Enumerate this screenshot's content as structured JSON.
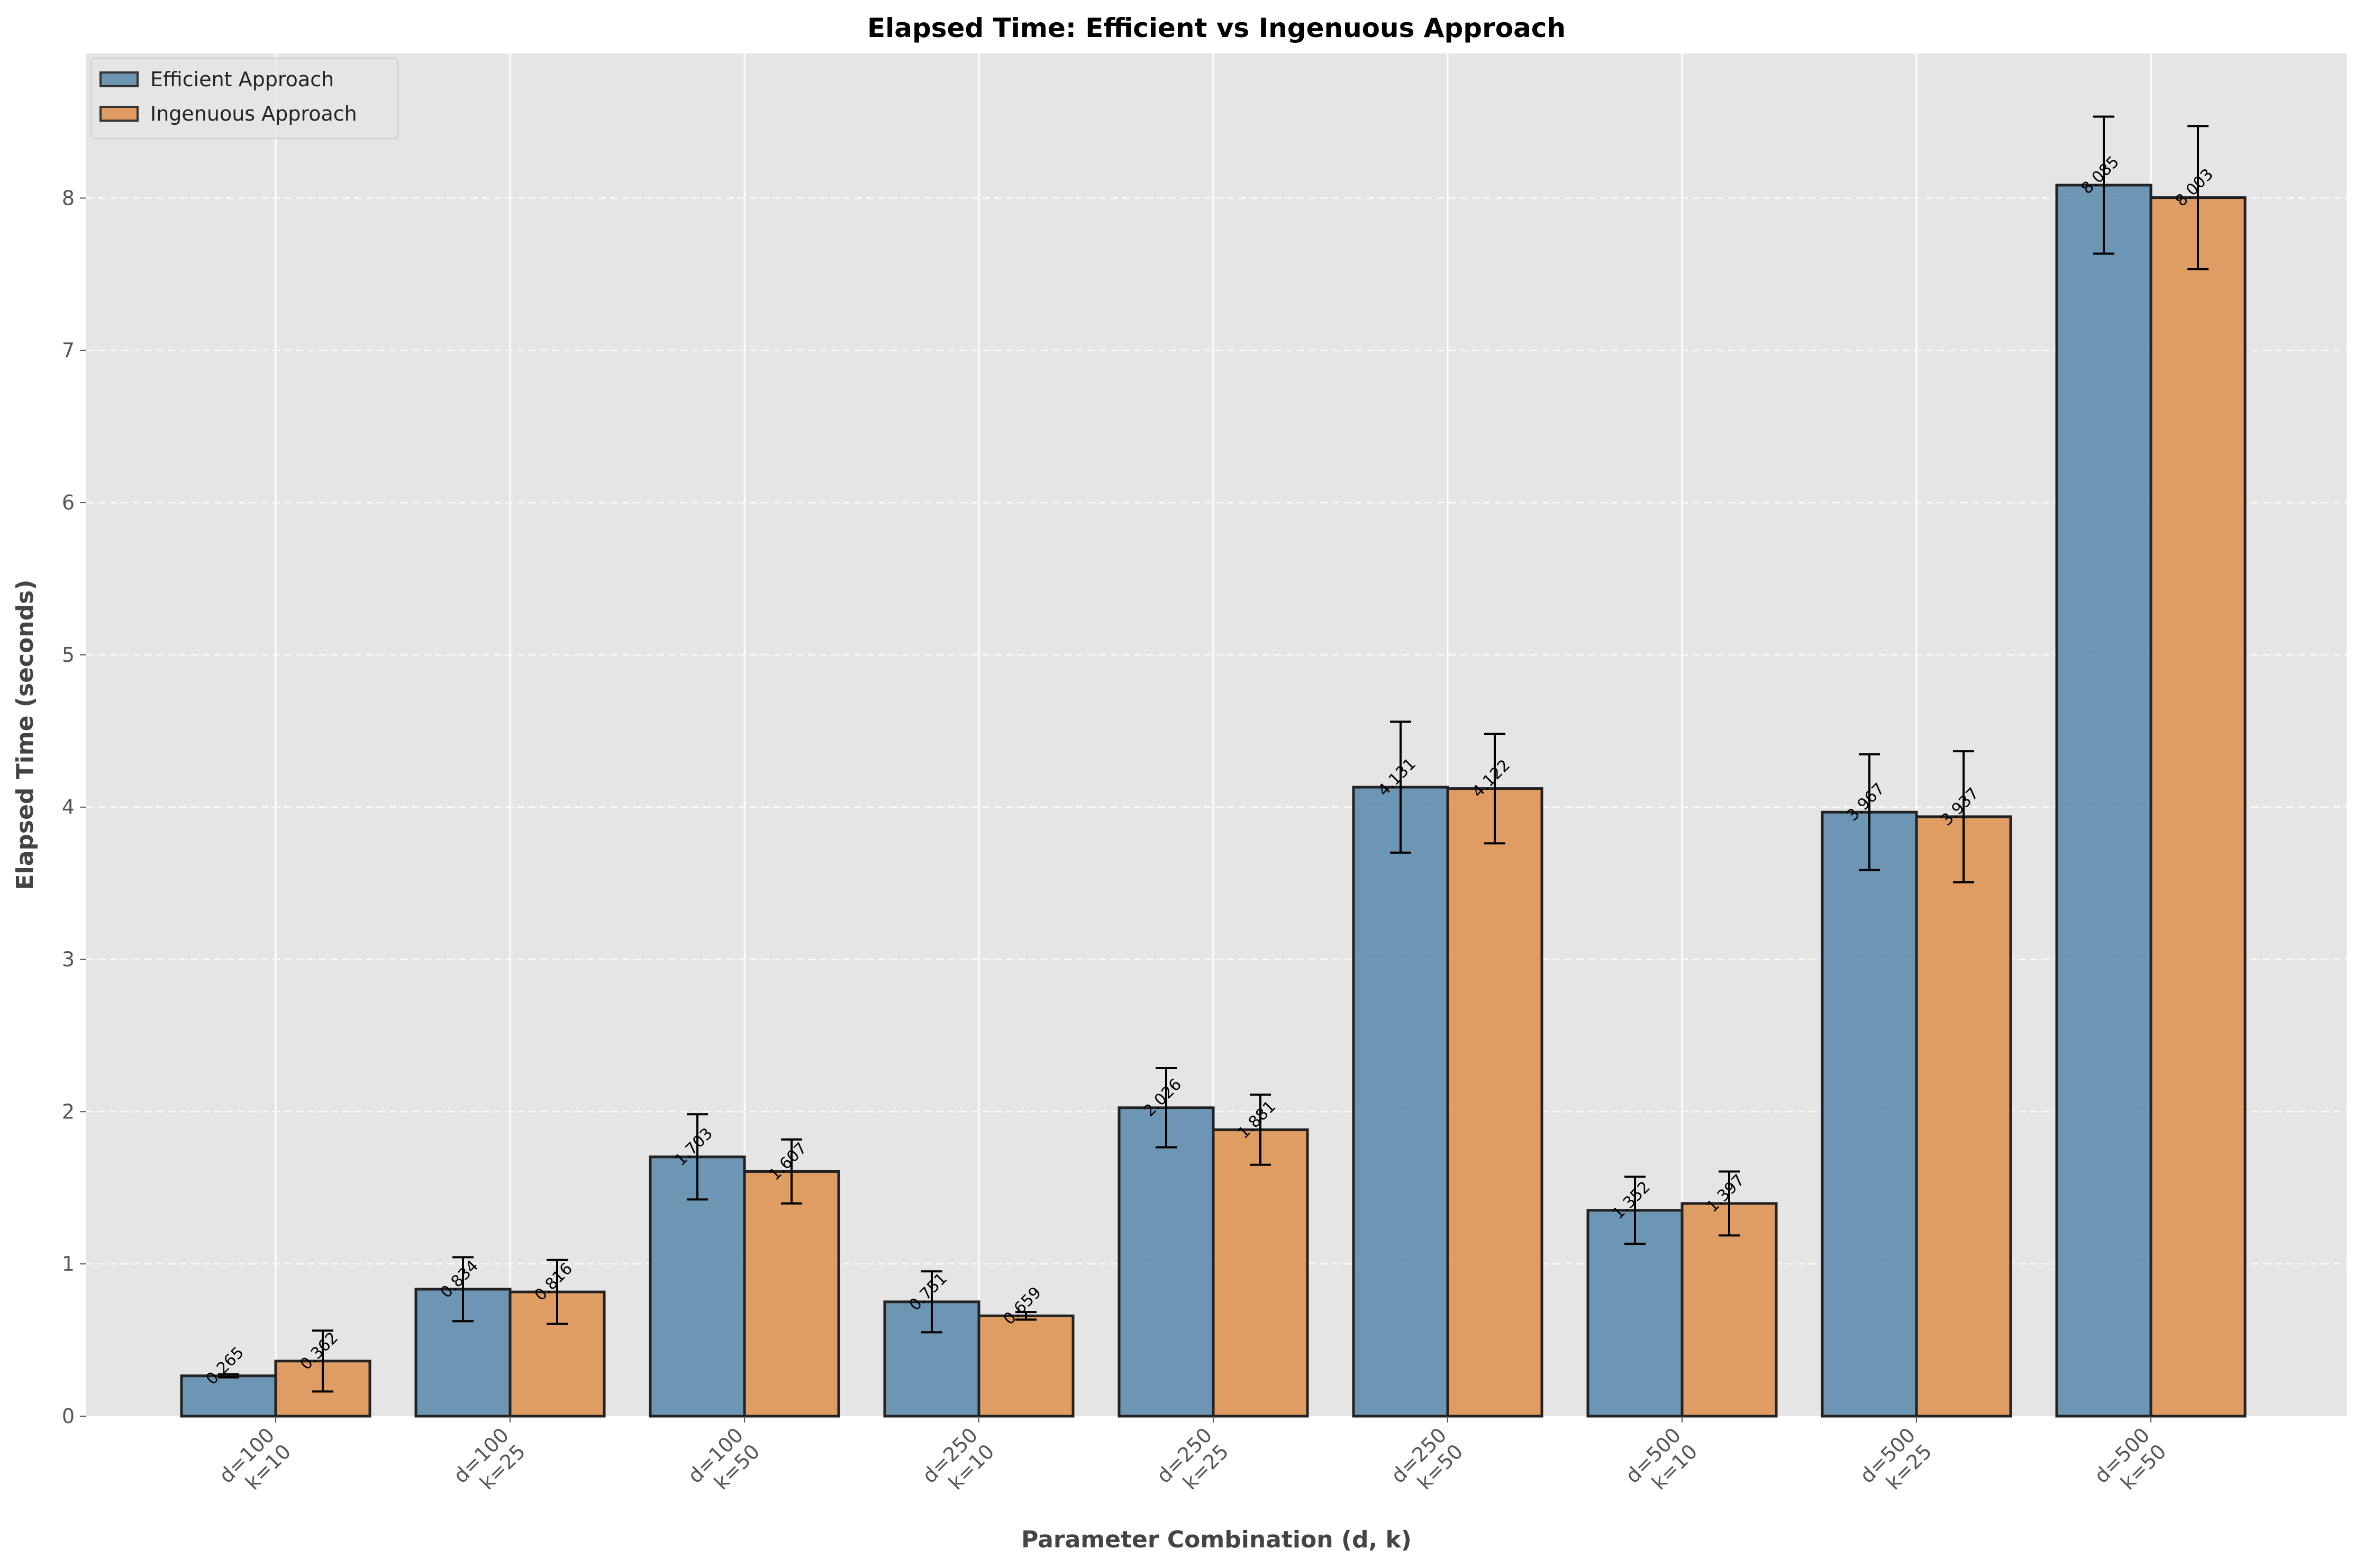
{
  "chart_data": {
    "type": "bar",
    "title": "Elapsed Time: Efficient vs Ingenuous Approach",
    "xlabel": "Parameter Combination (d, k)",
    "ylabel": "Elapsed Time (seconds)",
    "categories": [
      [
        "d=100",
        "k=10"
      ],
      [
        "d=100",
        "k=25"
      ],
      [
        "d=100",
        "k=50"
      ],
      [
        "d=250",
        "k=10"
      ],
      [
        "d=250",
        "k=25"
      ],
      [
        "d=250",
        "k=50"
      ],
      [
        "d=500",
        "k=10"
      ],
      [
        "d=500",
        "k=25"
      ],
      [
        "d=500",
        "k=50"
      ]
    ],
    "ylim": [
      0,
      8.95
    ],
    "yticks": [
      "0",
      "1",
      "2",
      "3",
      "4",
      "5",
      "6",
      "7",
      "8"
    ],
    "grid": true,
    "legend_position": "top-left",
    "series": [
      {
        "name": "Efficient Approach",
        "color": "#4f81a8",
        "values": [
          0.265,
          0.834,
          1.703,
          0.751,
          2.026,
          4.131,
          1.352,
          3.967,
          8.085
        ],
        "labels": [
          "0.265",
          "0.834",
          "1.703",
          "0.751",
          "2.026",
          "4.131",
          "1.352",
          "3.967",
          "8.085"
        ],
        "errors": [
          0.01,
          0.21,
          0.28,
          0.2,
          0.26,
          0.43,
          0.22,
          0.38,
          0.45
        ]
      },
      {
        "name": "Ingenuous Approach",
        "color": "#dd8b42",
        "values": [
          0.362,
          0.816,
          1.607,
          0.659,
          1.881,
          4.122,
          1.397,
          3.937,
          8.003
        ],
        "labels": [
          "0.362",
          "0.816",
          "1.607",
          "0.659",
          "1.881",
          "4.122",
          "1.397",
          "3.937",
          "8.003"
        ],
        "errors": [
          0.2,
          0.21,
          0.21,
          0.025,
          0.23,
          0.36,
          0.21,
          0.43,
          0.47
        ]
      }
    ]
  }
}
